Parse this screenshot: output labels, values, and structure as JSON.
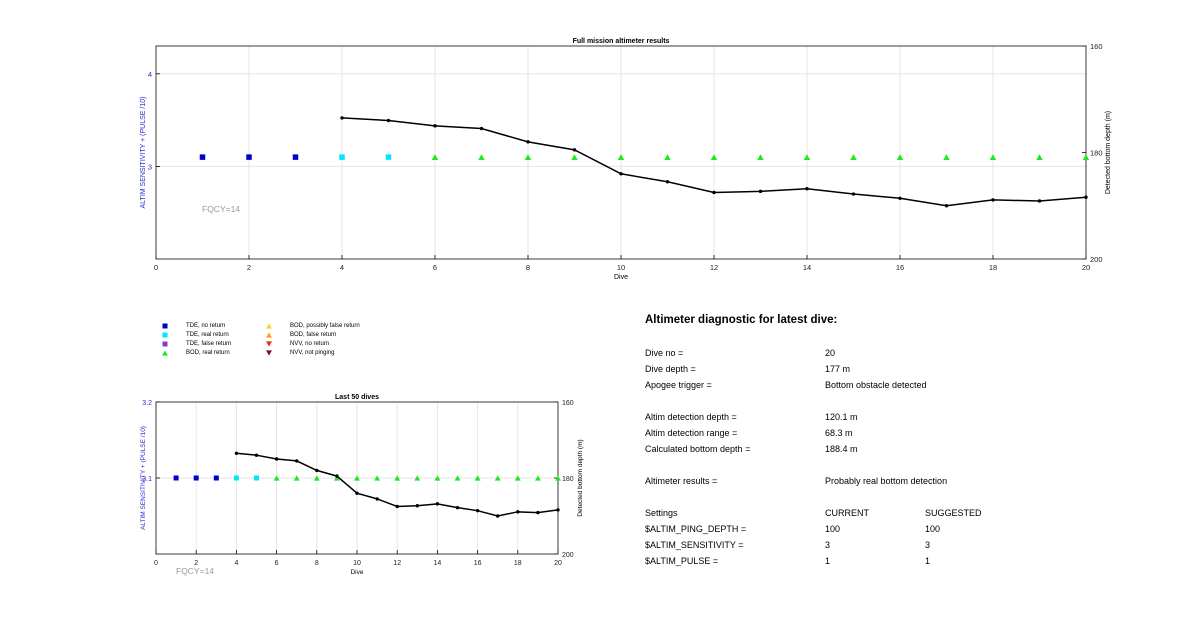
{
  "chart_data": [
    {
      "type": "line",
      "title": "Full mission altimeter results",
      "xlabel": "Dive",
      "ylabel_left": "ALTIM SENSITIVITY + (PULSE /10)",
      "ylabel_right": "Detected bottom depth (m)",
      "xlim": [
        0,
        20
      ],
      "x_ticks": [
        "0",
        "2",
        "4",
        "6",
        "8",
        "10",
        "12",
        "14",
        "16",
        "18",
        "20"
      ],
      "ylim_left": [
        2,
        4.3
      ],
      "y_ticks_left": [
        {
          "value": 3,
          "label": "3"
        },
        {
          "value": 4,
          "label": "4"
        }
      ],
      "ylim_right": [
        160,
        200
      ],
      "ylim_right_reversed": true,
      "y_ticks_right": [
        "160",
        "180",
        "200"
      ],
      "grid": true,
      "annotation": "FQCY=14",
      "markers": [
        {
          "dive": 1,
          "value": 3.1,
          "type": "TDE, no return"
        },
        {
          "dive": 2,
          "value": 3.1,
          "type": "TDE, no return"
        },
        {
          "dive": 3,
          "value": 3.1,
          "type": "TDE, no return"
        },
        {
          "dive": 4,
          "value": 3.1,
          "type": "TDE, real return"
        },
        {
          "dive": 5,
          "value": 3.1,
          "type": "TDE, real return"
        },
        {
          "dive": 6,
          "value": 3.1,
          "type": "BOD, real return"
        },
        {
          "dive": 7,
          "value": 3.1,
          "type": "BOD, real return"
        },
        {
          "dive": 8,
          "value": 3.1,
          "type": "BOD, real return"
        },
        {
          "dive": 9,
          "value": 3.1,
          "type": "BOD, real return"
        },
        {
          "dive": 10,
          "value": 3.1,
          "type": "BOD, real return"
        },
        {
          "dive": 11,
          "value": 3.1,
          "type": "BOD, real return"
        },
        {
          "dive": 12,
          "value": 3.1,
          "type": "BOD, real return"
        },
        {
          "dive": 13,
          "value": 3.1,
          "type": "BOD, real return"
        },
        {
          "dive": 14,
          "value": 3.1,
          "type": "BOD, real return"
        },
        {
          "dive": 15,
          "value": 3.1,
          "type": "BOD, real return"
        },
        {
          "dive": 16,
          "value": 3.1,
          "type": "BOD, real return"
        },
        {
          "dive": 17,
          "value": 3.1,
          "type": "BOD, real return"
        },
        {
          "dive": 18,
          "value": 3.1,
          "type": "BOD, real return"
        },
        {
          "dive": 19,
          "value": 3.1,
          "type": "BOD, real return"
        },
        {
          "dive": 20,
          "value": 3.1,
          "type": "BOD, real return"
        }
      ],
      "bottom_depth": {
        "x": [
          4,
          5,
          6,
          7,
          8,
          9,
          10,
          11,
          12,
          13,
          14,
          15,
          16,
          17,
          18,
          19,
          20
        ],
        "y": [
          173.5,
          174.0,
          175.0,
          175.5,
          178.0,
          179.5,
          184.0,
          185.5,
          187.5,
          187.3,
          186.8,
          187.8,
          188.6,
          190.0,
          188.9,
          189.1,
          188.4
        ]
      }
    },
    {
      "type": "line",
      "title": "Last 50 dives",
      "xlabel": "Dive",
      "ylabel_left": "ALTIM SENSITIVITY + (PULSE /10)",
      "ylabel_right": "Detected bottom depth (m)",
      "xlim": [
        0,
        20
      ],
      "x_ticks": [
        "0",
        "2",
        "4",
        "6",
        "8",
        "10",
        "12",
        "14",
        "16",
        "18",
        "20"
      ],
      "ylim_left": [
        3.0,
        3.2
      ],
      "y_ticks_left": [
        {
          "value": 3.1,
          "label": "3.1"
        },
        {
          "value": 3.2,
          "label": "3.2"
        }
      ],
      "ylim_right": [
        160,
        200
      ],
      "ylim_right_reversed": true,
      "y_ticks_right": [
        "160",
        "180",
        "200"
      ],
      "grid": true,
      "annotation": "FQCY=14",
      "markers": [
        {
          "dive": 1,
          "value": 3.1,
          "type": "TDE, no return"
        },
        {
          "dive": 2,
          "value": 3.1,
          "type": "TDE, no return"
        },
        {
          "dive": 3,
          "value": 3.1,
          "type": "TDE, no return"
        },
        {
          "dive": 4,
          "value": 3.1,
          "type": "TDE, real return"
        },
        {
          "dive": 5,
          "value": 3.1,
          "type": "TDE, real return"
        },
        {
          "dive": 6,
          "value": 3.1,
          "type": "BOD, real return"
        },
        {
          "dive": 7,
          "value": 3.1,
          "type": "BOD, real return"
        },
        {
          "dive": 8,
          "value": 3.1,
          "type": "BOD, real return"
        },
        {
          "dive": 9,
          "value": 3.1,
          "type": "BOD, real return"
        },
        {
          "dive": 10,
          "value": 3.1,
          "type": "BOD, real return"
        },
        {
          "dive": 11,
          "value": 3.1,
          "type": "BOD, real return"
        },
        {
          "dive": 12,
          "value": 3.1,
          "type": "BOD, real return"
        },
        {
          "dive": 13,
          "value": 3.1,
          "type": "BOD, real return"
        },
        {
          "dive": 14,
          "value": 3.1,
          "type": "BOD, real return"
        },
        {
          "dive": 15,
          "value": 3.1,
          "type": "BOD, real return"
        },
        {
          "dive": 16,
          "value": 3.1,
          "type": "BOD, real return"
        },
        {
          "dive": 17,
          "value": 3.1,
          "type": "BOD, real return"
        },
        {
          "dive": 18,
          "value": 3.1,
          "type": "BOD, real return"
        },
        {
          "dive": 19,
          "value": 3.1,
          "type": "BOD, real return"
        },
        {
          "dive": 20,
          "value": 3.1,
          "type": "BOD, real return"
        }
      ],
      "bottom_depth": {
        "x": [
          4,
          5,
          6,
          7,
          8,
          9,
          10,
          11,
          12,
          13,
          14,
          15,
          16,
          17,
          18,
          19,
          20
        ],
        "y": [
          173.5,
          174.0,
          175.0,
          175.5,
          178.0,
          179.5,
          184.0,
          185.5,
          187.5,
          187.3,
          186.8,
          187.8,
          188.6,
          190.0,
          188.9,
          189.1,
          188.4
        ]
      }
    }
  ],
  "legend": [
    {
      "label": "TDE, no return",
      "symbol": "square",
      "color": "#0000c8"
    },
    {
      "label": "TDE, real return",
      "symbol": "square",
      "color": "#00e5ff"
    },
    {
      "label": "TDE, false return",
      "symbol": "square",
      "color": "#7b3fd6"
    },
    {
      "label": "BOD, real return",
      "symbol": "triangle-up",
      "color": "#22e622"
    },
    {
      "label": "BOD, possibly false return",
      "symbol": "triangle-up",
      "color": "#ffd21f"
    },
    {
      "label": "BOD, false return",
      "symbol": "triangle-up",
      "color": "#ff9d1a"
    },
    {
      "label": "NVV, no return",
      "symbol": "triangle-down",
      "color": "#e03010"
    },
    {
      "label": "NVV, not pinging",
      "symbol": "triangle-down",
      "color": "#7a1010"
    }
  ],
  "colors": {
    "axis_left_label": "#2a2ad0",
    "annotation": "#9a9a9a",
    "line": "#000000",
    "grid": "#e6e6e6"
  },
  "diagnostic": {
    "title": "Altimeter diagnostic for latest dive:",
    "rows": [
      {
        "label": "Dive no =",
        "value": "20"
      },
      {
        "label": "Dive depth =",
        "value": "177 m"
      },
      {
        "label": "Apogee trigger =",
        "value": "Bottom obstacle detected"
      },
      {
        "label": "Altim detection depth =",
        "value": "120.1 m"
      },
      {
        "label": "Altim detection range =",
        "value": "68.3 m"
      },
      {
        "label": "Calculated bottom depth =",
        "value": "188.4 m"
      },
      {
        "label": "Altimeter results =",
        "value": "Probably real bottom detection"
      }
    ],
    "settings": {
      "header": {
        "label": "Settings",
        "current": "CURRENT",
        "suggested": "SUGGESTED"
      },
      "rows": [
        {
          "label": "$ALTIM_PING_DEPTH =",
          "current": "100",
          "suggested": "100"
        },
        {
          "label": "$ALTIM_SENSITIVITY =",
          "current": "3",
          "suggested": "3"
        },
        {
          "label": "$ALTIM_PULSE =",
          "current": "1",
          "suggested": "1"
        }
      ]
    }
  }
}
